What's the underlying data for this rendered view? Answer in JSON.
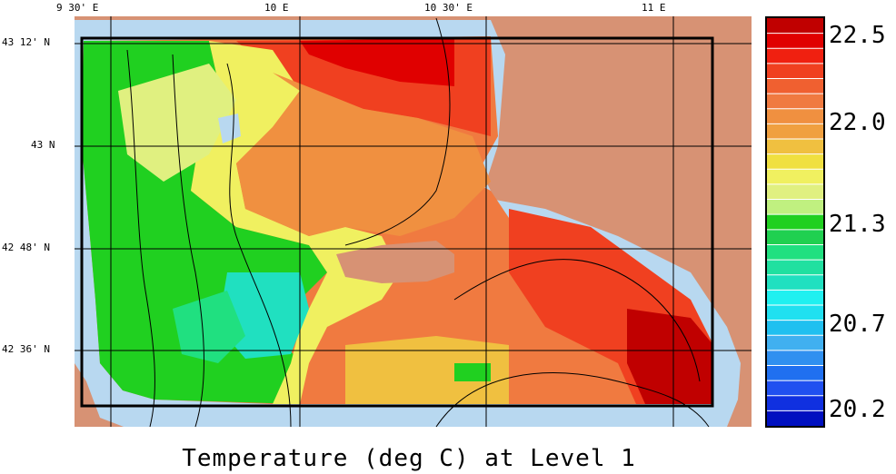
{
  "title": "Temperature (deg C) at Level 1",
  "lon_labels": [
    "9 30' E",
    "10 E",
    "10 30' E",
    "11 E"
  ],
  "lat_labels": [
    "43 12' N",
    "43 N",
    "42 48' N",
    "42 36' N"
  ],
  "colorbar": {
    "labels": [
      "22.5",
      "22.0",
      "21.3",
      "20.7",
      "20.2"
    ],
    "colors": [
      "#c00000",
      "#e00000",
      "#f02010",
      "#f04020",
      "#f06030",
      "#f07a40",
      "#f09040",
      "#f0a040",
      "#f0c040",
      "#f0e040",
      "#f0f060",
      "#e0f080",
      "#c0f080",
      "#20d020",
      "#20d050",
      "#20e080",
      "#20e0a0",
      "#20e0c0",
      "#20f0f0",
      "#20e0f0",
      "#20c0f0",
      "#40b0f0",
      "#3090f0",
      "#2070f0",
      "#2050f0",
      "#1030e0",
      "#0010c0"
    ]
  },
  "colors": {
    "land": "#d79274",
    "shelf": "#b8d8f0",
    "frame": "#000000"
  }
}
